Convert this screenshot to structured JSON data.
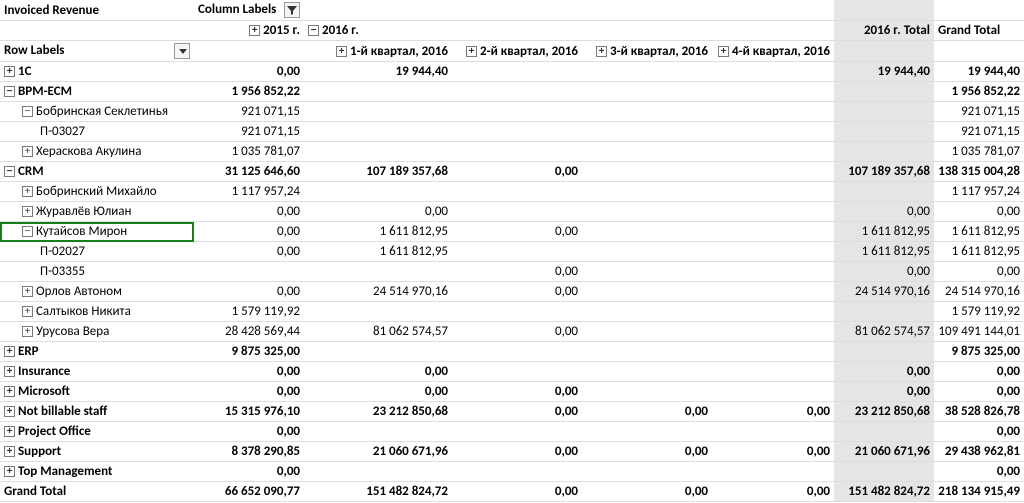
{
  "header": {
    "title": "Invoiced Revenue",
    "column_labels": "Column Labels",
    "row_labels": "Row Labels",
    "year_2015": "2015 г.",
    "year_2016": "2016 г.",
    "q1": "1-й квартал, 2016",
    "q2": "2-й квартал, 2016",
    "q3": "3-й квартал, 2016",
    "q4": "4-й квартал, 2016",
    "total_2016": "2016 г. Total",
    "grand_total_col": "Grand Total"
  },
  "rows": [
    {
      "indent": 0,
      "expander": "plus",
      "bold": true,
      "label": "1C",
      "y2015": "0,00",
      "q1": "19 944,40",
      "q2": "",
      "q3": "",
      "q4": "",
      "t2016": "19 944,40",
      "gt": "19 944,40"
    },
    {
      "indent": 0,
      "expander": "minus",
      "bold": true,
      "label": "BPM-ECM",
      "y2015": "1 956 852,22",
      "q1": "",
      "q2": "",
      "q3": "",
      "q4": "",
      "t2016": "",
      "gt": "1 956 852,22"
    },
    {
      "indent": 1,
      "expander": "minus",
      "bold": false,
      "label": "Бобринская Секлетинья",
      "y2015": "921 071,15",
      "q1": "",
      "q2": "",
      "q3": "",
      "q4": "",
      "t2016": "",
      "gt": "921 071,15"
    },
    {
      "indent": 2,
      "expander": "",
      "bold": false,
      "label": "П-03027",
      "y2015": "921 071,15",
      "q1": "",
      "q2": "",
      "q3": "",
      "q4": "",
      "t2016": "",
      "gt": "921 071,15"
    },
    {
      "indent": 1,
      "expander": "plus",
      "bold": false,
      "label": "Хераскова Акулина",
      "y2015": "1 035 781,07",
      "q1": "",
      "q2": "",
      "q3": "",
      "q4": "",
      "t2016": "",
      "gt": "1 035 781,07"
    },
    {
      "indent": 0,
      "expander": "minus",
      "bold": true,
      "label": "CRM",
      "y2015": "31 125 646,60",
      "q1": "107 189 357,68",
      "q2": "0,00",
      "q3": "",
      "q4": "",
      "t2016": "107 189 357,68",
      "gt": "138 315 004,28"
    },
    {
      "indent": 1,
      "expander": "plus",
      "bold": false,
      "label": "Бобринский Михайло",
      "y2015": "1 117 957,24",
      "q1": "",
      "q2": "",
      "q3": "",
      "q4": "",
      "t2016": "",
      "gt": "1 117 957,24"
    },
    {
      "indent": 1,
      "expander": "plus",
      "bold": false,
      "label": "Журавлёв Юлиан",
      "y2015": "0,00",
      "q1": "0,00",
      "q2": "",
      "q3": "",
      "q4": "",
      "t2016": "0,00",
      "gt": "0,00"
    },
    {
      "indent": 1,
      "expander": "minus",
      "bold": false,
      "label": "Кутайсов Мирон",
      "selected": true,
      "y2015": "0,00",
      "q1": "1 611 812,95",
      "q2": "0,00",
      "q3": "",
      "q4": "",
      "t2016": "1 611 812,95",
      "gt": "1 611 812,95"
    },
    {
      "indent": 2,
      "expander": "",
      "bold": false,
      "label": "П-02027",
      "y2015": "0,00",
      "q1": "1 611 812,95",
      "q2": "",
      "q3": "",
      "q4": "",
      "t2016": "1 611 812,95",
      "gt": "1 611 812,95"
    },
    {
      "indent": 2,
      "expander": "",
      "bold": false,
      "label": "П-03355",
      "y2015": "",
      "q1": "",
      "q2": "0,00",
      "q3": "",
      "q4": "",
      "t2016": "0,00",
      "gt": "0,00"
    },
    {
      "indent": 1,
      "expander": "plus",
      "bold": false,
      "label": "Орлов Автоном",
      "y2015": "0,00",
      "q1": "24 514 970,16",
      "q2": "0,00",
      "q3": "",
      "q4": "",
      "t2016": "24 514 970,16",
      "gt": "24 514 970,16"
    },
    {
      "indent": 1,
      "expander": "plus",
      "bold": false,
      "label": "Салтыков Никита",
      "y2015": "1 579 119,92",
      "q1": "",
      "q2": "",
      "q3": "",
      "q4": "",
      "t2016": "",
      "gt": "1 579 119,92"
    },
    {
      "indent": 1,
      "expander": "plus",
      "bold": false,
      "label": "Урусова Вера",
      "y2015": "28 428 569,44",
      "q1": "81 062 574,57",
      "q2": "0,00",
      "q3": "",
      "q4": "",
      "t2016": "81 062 574,57",
      "gt": "109 491 144,01"
    },
    {
      "indent": 0,
      "expander": "plus",
      "bold": true,
      "label": "ERP",
      "y2015": "9 875 325,00",
      "q1": "",
      "q2": "",
      "q3": "",
      "q4": "",
      "t2016": "",
      "gt": "9 875 325,00"
    },
    {
      "indent": 0,
      "expander": "plus",
      "bold": true,
      "label": "Insurance",
      "y2015": "0,00",
      "q1": "0,00",
      "q2": "",
      "q3": "",
      "q4": "",
      "t2016": "0,00",
      "gt": "0,00"
    },
    {
      "indent": 0,
      "expander": "plus",
      "bold": true,
      "label": "Microsoft",
      "y2015": "0,00",
      "q1": "0,00",
      "q2": "0,00",
      "q3": "",
      "q4": "",
      "t2016": "0,00",
      "gt": "0,00"
    },
    {
      "indent": 0,
      "expander": "plus",
      "bold": true,
      "label": "Not billable staff",
      "y2015": "15 315 976,10",
      "q1": "23 212 850,68",
      "q2": "0,00",
      "q3": "0,00",
      "q4": "0,00",
      "t2016": "23 212 850,68",
      "gt": "38 528 826,78"
    },
    {
      "indent": 0,
      "expander": "plus",
      "bold": true,
      "label": "Project Office",
      "y2015": "0,00",
      "q1": "",
      "q2": "",
      "q3": "",
      "q4": "",
      "t2016": "",
      "gt": "0,00"
    },
    {
      "indent": 0,
      "expander": "plus",
      "bold": true,
      "label": "Support",
      "y2015": "8 378 290,85",
      "q1": "21 060 671,96",
      "q2": "0,00",
      "q3": "0,00",
      "q4": "0,00",
      "t2016": "21 060 671,96",
      "gt": "29 438 962,81"
    },
    {
      "indent": 0,
      "expander": "plus",
      "bold": true,
      "label": "Top Management",
      "y2015": "0,00",
      "q1": "",
      "q2": "",
      "q3": "",
      "q4": "",
      "t2016": "",
      "gt": "0,00"
    }
  ],
  "grand_total": {
    "label": "Grand Total",
    "y2015": "66 652 090,77",
    "q1": "151 482 824,72",
    "q2": "0,00",
    "q3": "0,00",
    "q4": "0,00",
    "t2016": "151 482 824,72",
    "gt": "218 134 915,49"
  },
  "style": {
    "border_color": "#dddddd",
    "total_col_bg": "#e5e5e5",
    "selection_color": "#1a7d1a",
    "font_family": "Calibri",
    "font_size_pt": 10
  }
}
